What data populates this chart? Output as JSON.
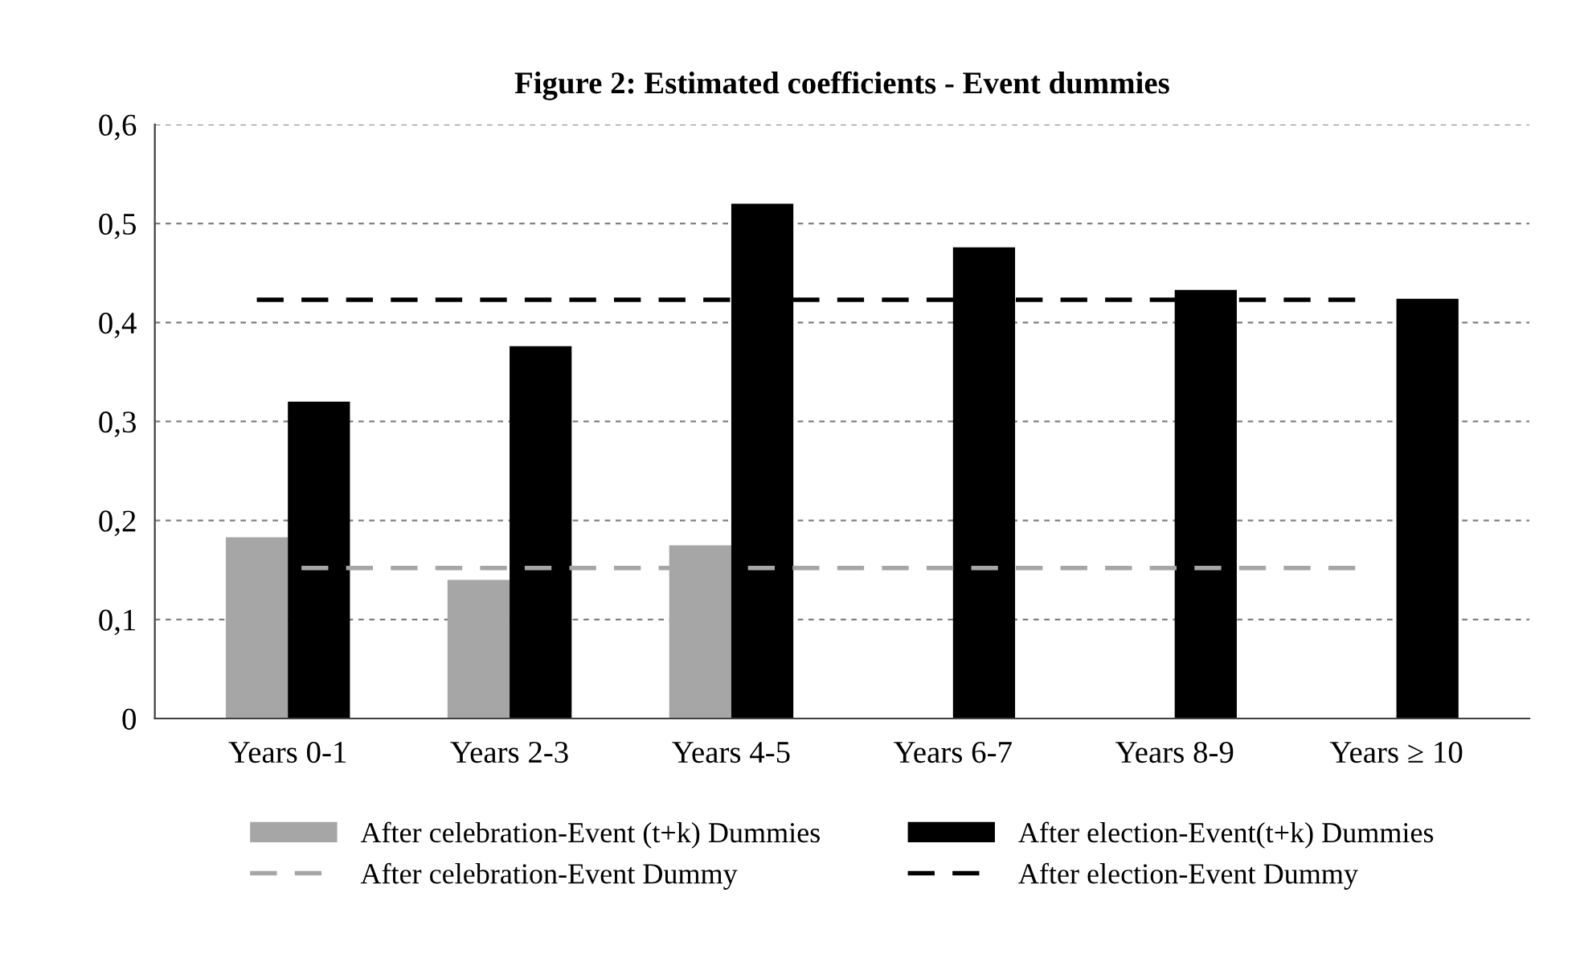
{
  "chart_data": {
    "type": "bar",
    "title": "Figure 2: Estimated coefficients - Event dummies",
    "categories": [
      "Years 0-1",
      "Years 2-3",
      "Years 4-5",
      "Years 6-7",
      "Years 8-9",
      "Years ≥ 10"
    ],
    "series": [
      {
        "name": "After celebration-Event (t+k) Dummies",
        "color": "#a6a6a6",
        "values": [
          0.183,
          0.14,
          0.175,
          null,
          null,
          null
        ]
      },
      {
        "name": "After election-Event(t+k) Dummies",
        "color": "#000000",
        "values": [
          0.32,
          0.376,
          0.52,
          0.476,
          0.433,
          0.424
        ]
      }
    ],
    "ref_lines": [
      {
        "axis": "y",
        "value": 0.152,
        "label": "After celebration-Event Dummy",
        "color": "#a6a6a6",
        "line_style": "dashed"
      },
      {
        "axis": "y",
        "value": 0.423,
        "label": "After election-Event Dummy",
        "color": "#000000",
        "line_style": "dashed"
      }
    ],
    "ylim": [
      0,
      0.6
    ],
    "yticks": [
      0,
      {
        "value": 0.1,
        "label": "0,1"
      },
      {
        "value": 0.2,
        "label": "0,2"
      },
      {
        "value": 0.3,
        "label": "0,3"
      },
      {
        "value": 0.4,
        "label": "0,4"
      },
      {
        "value": 0.5,
        "label": "0,5"
      },
      {
        "value": 0.6,
        "label": "0,6"
      }
    ],
    "grid": "y",
    "legend": "bottom"
  }
}
